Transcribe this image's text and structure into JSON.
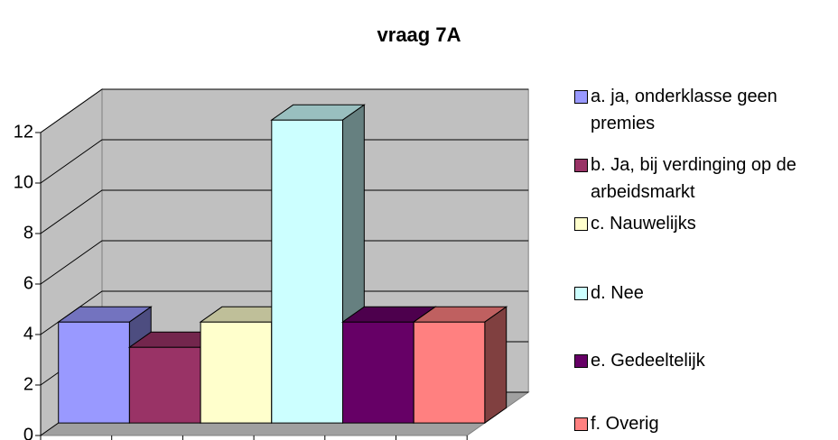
{
  "chart_data": {
    "type": "bar3d",
    "title": "vraag 7A",
    "categories": [
      "a. ja, onderklasse geen premies",
      "b. Ja, bij verdinging op de arbeidsmarkt",
      "c. Nauwelijks",
      "d. Nee",
      "e. Gedeeltelijk",
      "f. Overig"
    ],
    "values": [
      4,
      3,
      4,
      12,
      4,
      4
    ],
    "colors": [
      "#9999ff",
      "#993366",
      "#ffffcc",
      "#ccffff",
      "#660066",
      "#ff8080"
    ],
    "ylim": [
      0,
      12
    ],
    "yticks": [
      0,
      2,
      4,
      6,
      8,
      10,
      12
    ],
    "grid": true,
    "legend": "right"
  }
}
